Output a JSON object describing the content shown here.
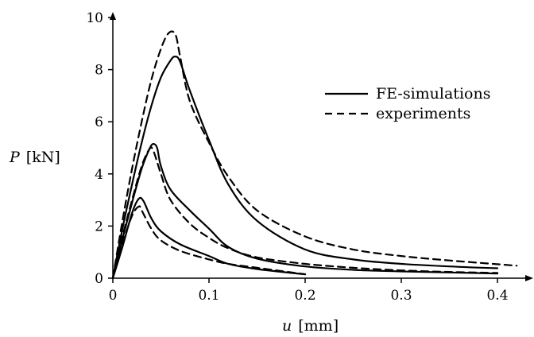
{
  "chart_data": {
    "type": "line",
    "title": "",
    "xlabel_var": "u",
    "xlabel_unit": "[mm]",
    "ylabel_var": "P",
    "ylabel_unit": "[kN]",
    "xlim": [
      0,
      0.43
    ],
    "ylim": [
      0,
      10
    ],
    "xticks": [
      0,
      0.1,
      0.2,
      0.3,
      0.4
    ],
    "xtick_labels": [
      "0",
      "0.1",
      "0.2",
      "0.3",
      "0.4"
    ],
    "yticks": [
      0,
      2,
      4,
      6,
      8,
      10
    ],
    "ytick_labels": [
      "0",
      "2",
      "4",
      "6",
      "8",
      "10"
    ],
    "grid": false,
    "legend_position": "top-right",
    "legend": [
      {
        "label": "FE-simulations",
        "style": "solid"
      },
      {
        "label": "experiments",
        "style": "dashed"
      }
    ],
    "series": [
      {
        "style": "dashed",
        "group": "high",
        "points": [
          [
            0,
            0
          ],
          [
            0.01,
            2.2
          ],
          [
            0.02,
            4.2
          ],
          [
            0.03,
            6.0
          ],
          [
            0.04,
            7.6
          ],
          [
            0.05,
            8.8
          ],
          [
            0.058,
            9.4
          ],
          [
            0.065,
            9.35
          ],
          [
            0.07,
            8.5
          ],
          [
            0.08,
            6.8
          ],
          [
            0.1,
            5.2
          ],
          [
            0.12,
            3.9
          ],
          [
            0.15,
            2.6
          ],
          [
            0.2,
            1.6
          ],
          [
            0.25,
            1.1
          ],
          [
            0.3,
            0.85
          ],
          [
            0.35,
            0.68
          ],
          [
            0.42,
            0.48
          ]
        ]
      },
      {
        "style": "solid",
        "group": "high",
        "points": [
          [
            0,
            0
          ],
          [
            0.01,
            1.9
          ],
          [
            0.02,
            3.6
          ],
          [
            0.03,
            5.2
          ],
          [
            0.04,
            6.6
          ],
          [
            0.05,
            7.7
          ],
          [
            0.06,
            8.35
          ],
          [
            0.065,
            8.5
          ],
          [
            0.07,
            8.3
          ],
          [
            0.08,
            7.2
          ],
          [
            0.1,
            5.3
          ],
          [
            0.12,
            3.6
          ],
          [
            0.15,
            2.2
          ],
          [
            0.2,
            1.1
          ],
          [
            0.25,
            0.72
          ],
          [
            0.3,
            0.55
          ],
          [
            0.35,
            0.45
          ],
          [
            0.4,
            0.38
          ]
        ]
      },
      {
        "style": "dashed",
        "group": "mid",
        "points": [
          [
            0,
            0
          ],
          [
            0.01,
            1.6
          ],
          [
            0.02,
            3.0
          ],
          [
            0.03,
            4.3
          ],
          [
            0.038,
            4.95
          ],
          [
            0.042,
            4.9
          ],
          [
            0.05,
            4.0
          ],
          [
            0.06,
            3.0
          ],
          [
            0.08,
            2.1
          ],
          [
            0.1,
            1.55
          ],
          [
            0.12,
            1.15
          ],
          [
            0.15,
            0.8
          ],
          [
            0.2,
            0.55
          ],
          [
            0.25,
            0.4
          ],
          [
            0.3,
            0.3
          ],
          [
            0.35,
            0.24
          ],
          [
            0.4,
            0.2
          ]
        ]
      },
      {
        "style": "solid",
        "group": "mid",
        "points": [
          [
            0,
            0
          ],
          [
            0.01,
            1.5
          ],
          [
            0.02,
            2.9
          ],
          [
            0.03,
            4.2
          ],
          [
            0.038,
            4.95
          ],
          [
            0.042,
            5.15
          ],
          [
            0.046,
            5.0
          ],
          [
            0.05,
            4.3
          ],
          [
            0.06,
            3.4
          ],
          [
            0.08,
            2.6
          ],
          [
            0.1,
            1.9
          ],
          [
            0.12,
            1.2
          ],
          [
            0.15,
            0.75
          ],
          [
            0.2,
            0.45
          ],
          [
            0.25,
            0.32
          ],
          [
            0.3,
            0.26
          ],
          [
            0.35,
            0.22
          ],
          [
            0.4,
            0.18
          ]
        ]
      },
      {
        "style": "dashed",
        "group": "low",
        "points": [
          [
            0,
            0
          ],
          [
            0.01,
            1.3
          ],
          [
            0.02,
            2.4
          ],
          [
            0.027,
            2.75
          ],
          [
            0.03,
            2.6
          ],
          [
            0.04,
            1.9
          ],
          [
            0.05,
            1.45
          ],
          [
            0.07,
            1.05
          ],
          [
            0.1,
            0.72
          ],
          [
            0.12,
            0.55
          ],
          [
            0.15,
            0.4
          ],
          [
            0.2,
            0.15
          ]
        ]
      },
      {
        "style": "solid",
        "group": "low",
        "points": [
          [
            0,
            0
          ],
          [
            0.01,
            1.2
          ],
          [
            0.02,
            2.5
          ],
          [
            0.027,
            3.05
          ],
          [
            0.032,
            2.95
          ],
          [
            0.04,
            2.3
          ],
          [
            0.05,
            1.8
          ],
          [
            0.07,
            1.3
          ],
          [
            0.1,
            0.85
          ],
          [
            0.12,
            0.55
          ],
          [
            0.15,
            0.35
          ],
          [
            0.2,
            0.15
          ]
        ]
      }
    ]
  }
}
